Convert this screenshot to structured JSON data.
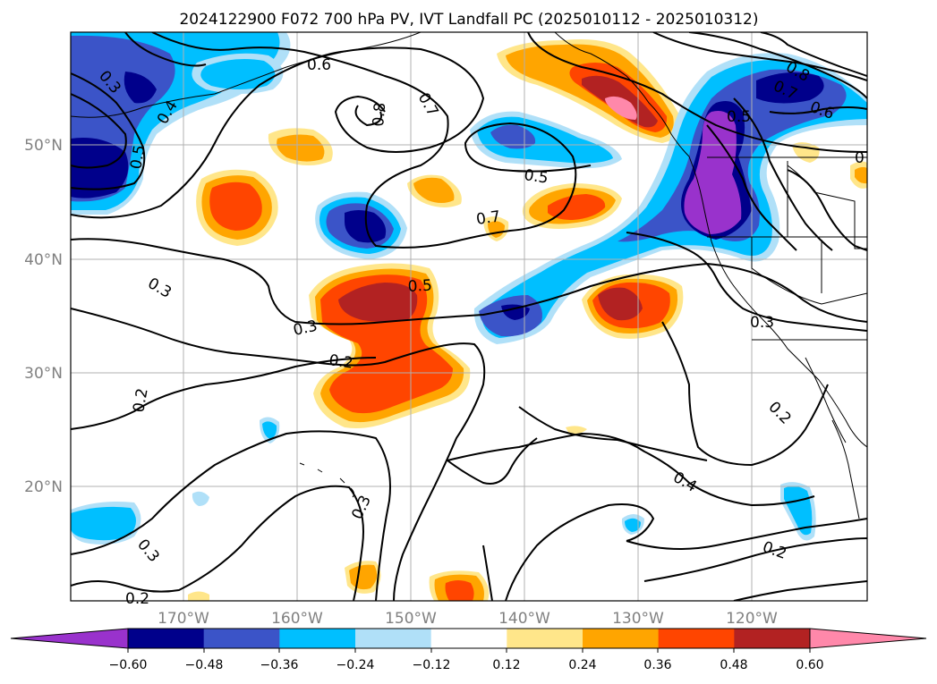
{
  "title": "2024122900 F072 700 hPa PV, IVT Landfall PC (2025010112 - 2025010312)",
  "map": {
    "lon_ticks": [
      "170°W",
      "160°W",
      "150°W",
      "140°W",
      "130°W",
      "120°W"
    ],
    "lat_ticks": [
      "50°N",
      "40°N",
      "30°N",
      "20°N"
    ],
    "gridlines": true
  },
  "colorbar": {
    "colors": [
      "#9932cc",
      "#00008b",
      "#3b54c8",
      "#00bfff",
      "#b0e0f8",
      "#ffffff",
      "#ffe68a",
      "#ffa500",
      "#ff4500",
      "#b22222",
      "#ff88aa"
    ],
    "ticks": [
      "−0.60",
      "−0.48",
      "−0.36",
      "−0.24",
      "−0.12",
      "0.12",
      "0.24",
      "0.36",
      "0.48",
      "0.60"
    ],
    "extend": "both"
  },
  "contour_labels": [
    {
      "text": "0.3"
    },
    {
      "text": "0.4"
    },
    {
      "text": "0.5"
    },
    {
      "text": "0.6"
    },
    {
      "text": "0.8"
    },
    {
      "text": "0.7"
    },
    {
      "text": "0.5"
    },
    {
      "text": "0.7"
    },
    {
      "text": "0.5"
    },
    {
      "text": "0.3"
    },
    {
      "text": "0.3"
    },
    {
      "text": "0.2"
    },
    {
      "text": "0.2"
    },
    {
      "text": "0.3"
    },
    {
      "text": "0.3"
    },
    {
      "text": "0.2"
    },
    {
      "text": "0.8"
    },
    {
      "text": "0.7"
    },
    {
      "text": "0.6"
    },
    {
      "text": "0.5"
    },
    {
      "text": "0"
    },
    {
      "text": "0.3"
    },
    {
      "text": "0.2"
    },
    {
      "text": "0.4"
    },
    {
      "text": "0.2"
    }
  ]
}
